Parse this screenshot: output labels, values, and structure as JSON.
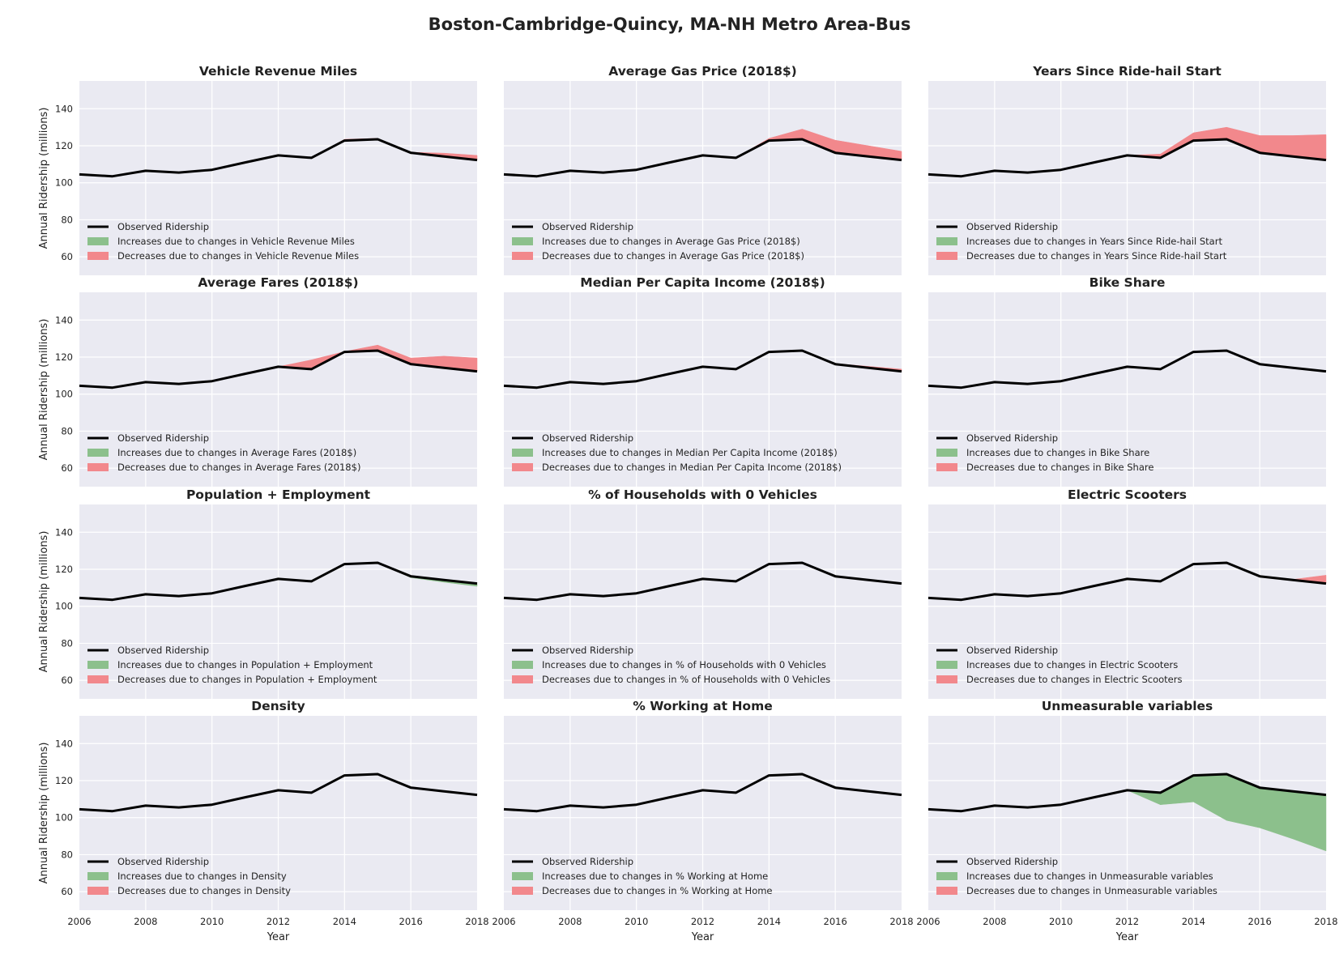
{
  "title": "Boston-Cambridge-Quincy, MA-NH Metro Area-Bus",
  "colors": {
    "background": "#eaeaf2",
    "grid": "#ffffff",
    "line": "#000000",
    "increase": "#8cc08c",
    "decrease": "#f2888c"
  },
  "chart_data": {
    "type": "area",
    "layout": "4x3 subplot grid, shared axes",
    "xlabel": "Year",
    "ylabel": "Annual Ridership (millions)",
    "xlim": [
      2006,
      2018
    ],
    "ylim": [
      50,
      155
    ],
    "xticks": [
      2006,
      2008,
      2010,
      2012,
      2014,
      2016,
      2018
    ],
    "yticks": [
      60,
      80,
      100,
      120,
      140
    ],
    "grid": true,
    "legend_position": "lower-left",
    "x": [
      2006,
      2007,
      2008,
      2009,
      2010,
      2011,
      2012,
      2013,
      2014,
      2015,
      2016,
      2017,
      2018
    ],
    "observed": [
      104.5,
      103.5,
      106.5,
      105.5,
      107,
      111,
      114.8,
      113.5,
      122.8,
      123.5,
      116.2,
      114.2,
      112.3
    ],
    "legend_observed": "Observed Ridership",
    "panels": [
      {
        "title": "Vehicle Revenue Miles",
        "legend_increase": "Increases due to changes in Vehicle Revenue Miles",
        "legend_decrease": "Decreases due to changes in Vehicle Revenue Miles",
        "counterfactual": [
          104.5,
          103.5,
          106.5,
          105.5,
          107,
          111,
          114.8,
          113.5,
          123.5,
          124,
          116.5,
          116,
          114.8
        ]
      },
      {
        "title": "Average Gas Price (2018$)",
        "legend_increase": "Increases due to changes in Average Gas Price (2018$)",
        "legend_decrease": "Decreases due to changes in Average Gas Price (2018$)",
        "counterfactual": [
          104.5,
          103.5,
          106.5,
          105.5,
          107,
          111,
          114.8,
          113.5,
          124,
          129,
          123,
          120,
          117
        ]
      },
      {
        "title": "Years Since Ride-hail Start",
        "legend_increase": "Increases due to changes in Years Since Ride-hail Start",
        "legend_decrease": "Decreases due to changes in Years Since Ride-hail Start",
        "counterfactual": [
          104.5,
          103.5,
          106.5,
          105.5,
          107,
          111,
          114.8,
          115.5,
          127,
          130,
          125.5,
          125.5,
          126
        ]
      },
      {
        "title": "Average Fares (2018$)",
        "legend_increase": "Increases due to changes in Average Fares (2018$)",
        "legend_decrease": "Decreases due to changes in Average Fares (2018$)",
        "counterfactual": [
          104.5,
          103.5,
          106.5,
          105.5,
          107,
          111,
          114.8,
          118.5,
          123,
          126.5,
          119.5,
          120.5,
          119.5
        ]
      },
      {
        "title": "Median Per Capita Income (2018$)",
        "legend_increase": "Increases due to changes in Median Per Capita Income (2018$)",
        "legend_decrease": "Decreases due to changes in Median Per Capita Income (2018$)",
        "counterfactual": [
          104.5,
          103.5,
          106.5,
          105.5,
          107,
          111,
          114.8,
          113.5,
          122.8,
          123.5,
          116.5,
          115,
          113.5
        ]
      },
      {
        "title": "Bike Share",
        "legend_increase": "Increases due to changes in Bike Share",
        "legend_decrease": "Decreases due to changes in Bike Share",
        "counterfactual": [
          104.5,
          103.5,
          106.5,
          105.5,
          107,
          111,
          114.8,
          113.5,
          122.8,
          123.5,
          116.2,
          114.2,
          112.3
        ]
      },
      {
        "title": "Population + Employment",
        "legend_increase": "Increases due to changes in Population + Employment",
        "legend_decrease": "Decreases due to changes in Population + Employment",
        "counterfactual": [
          104.5,
          103.5,
          106.5,
          105.5,
          107,
          111,
          114.8,
          113.5,
          122.8,
          123.5,
          115.5,
          113,
          110.8
        ]
      },
      {
        "title": "% of Households with 0 Vehicles",
        "legend_increase": "Increases due to changes in % of Households with 0 Vehicles",
        "legend_decrease": "Decreases due to changes in % of Households with 0 Vehicles",
        "counterfactual": [
          104.5,
          103.5,
          106.5,
          105.5,
          107,
          111,
          114.8,
          113.5,
          122.8,
          123.5,
          116.2,
          114.2,
          112.3
        ]
      },
      {
        "title": "Electric Scooters",
        "legend_increase": "Increases due to changes in Electric Scooters",
        "legend_decrease": "Decreases due to changes in Electric Scooters",
        "counterfactual": [
          104.5,
          103.5,
          106.5,
          105.5,
          107,
          111,
          114.8,
          113.5,
          122.8,
          123.5,
          116.2,
          114.5,
          116.8
        ]
      },
      {
        "title": "Density",
        "legend_increase": "Increases due to changes in Density",
        "legend_decrease": "Decreases due to changes in Density",
        "counterfactual": [
          104.5,
          103.5,
          106.5,
          105.5,
          107,
          111,
          114.8,
          113.5,
          122.8,
          123.5,
          116.2,
          114.2,
          112.3
        ]
      },
      {
        "title": "% Working at Home",
        "legend_increase": "Increases due to changes in % Working at Home",
        "legend_decrease": "Decreases due to changes in % Working at Home",
        "counterfactual": [
          104.5,
          103.5,
          106.5,
          105.5,
          107,
          111,
          114.8,
          113.5,
          122.8,
          123.5,
          116.2,
          114.2,
          112.3
        ]
      },
      {
        "title": "Unmeasurable variables",
        "legend_increase": "Increases due to changes in Unmeasurable variables",
        "legend_decrease": "Decreases due to changes in Unmeasurable variables",
        "counterfactual": [
          104.5,
          103.5,
          106.5,
          105.5,
          107,
          111,
          114.8,
          107,
          108.5,
          98.5,
          94.5,
          88.5,
          82
        ]
      }
    ]
  }
}
